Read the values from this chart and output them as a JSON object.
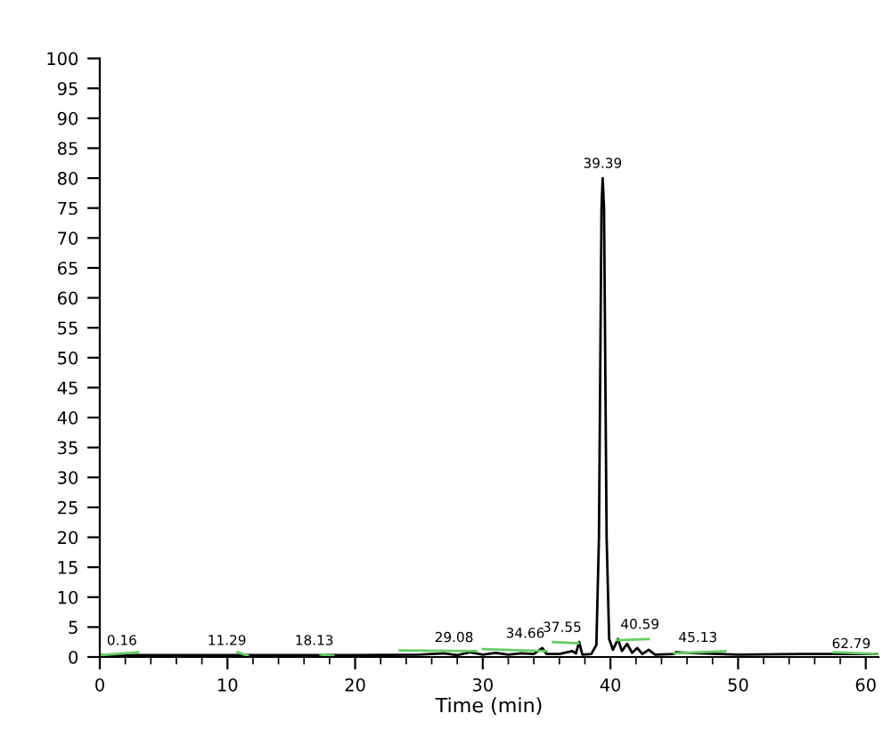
{
  "chart_data": {
    "type": "line",
    "xlabel": "Time (min)",
    "xlim": [
      0,
      61
    ],
    "ylim": [
      0,
      100
    ],
    "xticks": [
      0,
      {
        "value": 2,
        "label": null
      },
      {
        "value": 4,
        "label": null
      },
      {
        "value": 6,
        "label": null
      },
      {
        "value": 8,
        "label": null
      },
      10,
      {
        "value": 12,
        "label": null
      },
      {
        "value": 14,
        "label": null
      },
      {
        "value": 16,
        "label": null
      },
      {
        "value": 18,
        "label": null
      },
      20,
      {
        "value": 22,
        "label": null
      },
      {
        "value": 24,
        "label": null
      },
      {
        "value": 26,
        "label": null
      },
      {
        "value": 28,
        "label": null
      },
      30,
      {
        "value": 32,
        "label": null
      },
      {
        "value": 34,
        "label": null
      },
      {
        "value": 36,
        "label": null
      },
      {
        "value": 38,
        "label": null
      },
      40,
      {
        "value": 42,
        "label": null
      },
      {
        "value": 44,
        "label": null
      },
      {
        "value": 46,
        "label": null
      },
      {
        "value": 48,
        "label": null
      },
      50,
      {
        "value": 52,
        "label": null
      },
      {
        "value": 54,
        "label": null
      },
      {
        "value": 56,
        "label": null
      },
      {
        "value": 58,
        "label": null
      },
      60
    ],
    "yticks": [
      0,
      5,
      10,
      15,
      20,
      25,
      30,
      35,
      40,
      45,
      50,
      55,
      60,
      65,
      70,
      75,
      80,
      85,
      90,
      95,
      100
    ],
    "grid": false,
    "legend": false,
    "marker": "none",
    "line_style": "solid",
    "series": [
      {
        "color": "#000000",
        "x": [
          0,
          5,
          10,
          15,
          20,
          25,
          27,
          28,
          29,
          30,
          31,
          32,
          33,
          34,
          34.66,
          35,
          36,
          37,
          37.3,
          37.55,
          37.8,
          38.5,
          38.9,
          39.1,
          39.3,
          39.39,
          39.5,
          39.7,
          39.9,
          40.2,
          40.59,
          40.9,
          41.3,
          41.7,
          42.1,
          42.5,
          43,
          43.5,
          45,
          45.13,
          47,
          50,
          55,
          60,
          61
        ],
        "values": [
          0.3,
          0.3,
          0.3,
          0.3,
          0.3,
          0.4,
          0.6,
          0.3,
          0.8,
          0.4,
          0.7,
          0.4,
          0.6,
          0.5,
          1.5,
          0.5,
          0.5,
          1.0,
          0.6,
          2.5,
          0.4,
          0.5,
          2,
          20,
          75,
          80,
          75,
          20,
          3,
          1.2,
          3,
          1.0,
          2.2,
          0.7,
          1.5,
          0.5,
          1.2,
          0.4,
          0.5,
          0.8,
          0.6,
          0.4,
          0.5,
          0.5,
          0.5
        ]
      },
      {
        "color": "#66cc66",
        "x": [
          0,
          3,
          3.1,
          10.8,
          11.6,
          11.7,
          17.3,
          18.3,
          18.4,
          23.5,
          29.5,
          29.6,
          30,
          35,
          35.1,
          35.5,
          37.5,
          37.6,
          40.5,
          43,
          43.1,
          45,
          49,
          49.1,
          57.5,
          61
        ],
        "values": [
          0.3,
          0.8,
          null,
          0.8,
          0.2,
          null,
          0.4,
          0.2,
          null,
          1.1,
          1.0,
          null,
          1.3,
          1.0,
          null,
          2.5,
          2.3,
          null,
          2.8,
          3.0,
          null,
          0.6,
          1.0,
          null,
          0.8,
          0.5
        ]
      }
    ],
    "annotations": [
      {
        "text": "0.16",
        "x": 0.16,
        "y": 0.3
      },
      {
        "text": "11.29",
        "x": 11.29,
        "y": 0.3
      },
      {
        "text": "18.13",
        "x": 18.13,
        "y": 0.3
      },
      {
        "text": "29.08",
        "x": 29.08,
        "y": 0.8
      },
      {
        "text": "34.66",
        "x": 34.66,
        "y": 1.5
      },
      {
        "text": "37.55",
        "x": 37.55,
        "y": 2.5
      },
      {
        "text": "39.39",
        "x": 39.39,
        "y": 80
      },
      {
        "text": "40.59",
        "x": 40.59,
        "y": 3
      },
      {
        "text": "45.13",
        "x": 45.13,
        "y": 0.8
      },
      "62.79"
    ]
  }
}
